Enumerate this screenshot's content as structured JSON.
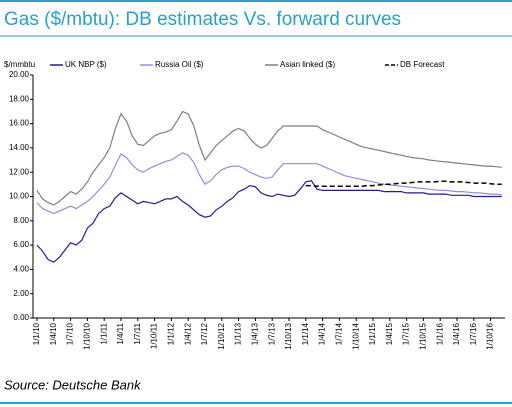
{
  "chart_data": {
    "type": "line",
    "title": "Gas ($/mbtu): DB estimates Vs. forward curves",
    "y_axis_label": "$/mmbtu",
    "source": "Source: Deutsche Bank",
    "categories": [
      "1/1/10",
      null,
      null,
      "1/4/10",
      null,
      null,
      "1/7/10",
      null,
      null,
      "1/10/10",
      null,
      null,
      "1/1/11",
      null,
      null,
      "1/4/11",
      null,
      null,
      "1/7/11",
      null,
      null,
      "1/10/11",
      null,
      null,
      "1/1/12",
      null,
      null,
      "1/4/12",
      null,
      null,
      "1/7/12",
      null,
      null,
      "1/10/12",
      null,
      null,
      "1/1/13",
      null,
      null,
      "1/4/13",
      null,
      null,
      "1/7/13",
      null,
      null,
      "1/10/13",
      null,
      null,
      "1/1/14",
      null,
      null,
      "1/4/14",
      null,
      null,
      "1/7/14",
      null,
      null,
      "1/10/14",
      null,
      null,
      "1/1/15",
      null,
      null,
      "1/4/15",
      null,
      null,
      "1/7/15",
      null,
      null,
      "1/10/15",
      null,
      null,
      "1/1/16",
      null,
      null,
      "1/4/16",
      null,
      null,
      "1/7/16",
      null,
      null,
      "1/10/16",
      null,
      null
    ],
    "series": [
      {
        "name": "UK NBP ($)",
        "color": "#1f1f8f",
        "style": "solid",
        "values": [
          6.0,
          5.5,
          4.8,
          4.6,
          5.0,
          5.6,
          6.2,
          6.0,
          6.4,
          7.4,
          7.8,
          8.6,
          9.0,
          9.2,
          9.9,
          10.3,
          10.0,
          9.7,
          9.4,
          9.6,
          9.5,
          9.4,
          9.6,
          9.8,
          9.8,
          10.0,
          9.6,
          9.3,
          8.9,
          8.5,
          8.3,
          8.4,
          8.9,
          9.2,
          9.6,
          9.9,
          10.4,
          10.6,
          10.9,
          10.8,
          10.3,
          10.1,
          10.0,
          10.2,
          10.1,
          10.0,
          10.1,
          10.6,
          11.2,
          11.3,
          10.6,
          10.5,
          10.5,
          10.5,
          10.5,
          10.5,
          10.5,
          10.5,
          10.5,
          10.5,
          10.5,
          10.5,
          10.4,
          10.4,
          10.4,
          10.4,
          10.3,
          10.3,
          10.3,
          10.3,
          10.2,
          10.2,
          10.2,
          10.2,
          10.1,
          10.1,
          10.1,
          10.1,
          10.0,
          10.0,
          10.0,
          10.0,
          10.0,
          10.0
        ]
      },
      {
        "name": "Russia Oil ($)",
        "color": "#8f8fe0",
        "style": "solid",
        "values": [
          9.5,
          9.0,
          8.8,
          8.6,
          8.8,
          9.0,
          9.2,
          9.0,
          9.3,
          9.6,
          10.0,
          10.5,
          11.0,
          11.6,
          12.6,
          13.5,
          13.2,
          12.6,
          12.2,
          12.0,
          12.3,
          12.5,
          12.7,
          12.9,
          13.0,
          13.3,
          13.6,
          13.4,
          12.8,
          11.8,
          11.0,
          11.3,
          11.8,
          12.2,
          12.4,
          12.5,
          12.5,
          12.3,
          12.0,
          11.8,
          11.6,
          11.5,
          11.6,
          12.2,
          12.7,
          12.7,
          12.7,
          12.7,
          12.7,
          12.7,
          12.7,
          12.5,
          12.3,
          12.1,
          11.9,
          11.7,
          11.6,
          11.5,
          11.4,
          11.3,
          11.2,
          11.1,
          11.0,
          10.95,
          10.9,
          10.85,
          10.8,
          10.75,
          10.7,
          10.65,
          10.6,
          10.55,
          10.5,
          10.5,
          10.45,
          10.4,
          10.4,
          10.35,
          10.3,
          10.3,
          10.25,
          10.2,
          10.2,
          10.15
        ]
      },
      {
        "name": "Asian linked ($)",
        "color": "#7f7f7f",
        "style": "solid",
        "values": [
          10.5,
          9.8,
          9.5,
          9.3,
          9.6,
          10.0,
          10.4,
          10.2,
          10.6,
          11.2,
          12.0,
          12.6,
          13.2,
          14.0,
          15.6,
          16.8,
          16.2,
          15.0,
          14.3,
          14.2,
          14.6,
          15.0,
          15.2,
          15.3,
          15.5,
          16.2,
          17.0,
          16.8,
          15.8,
          14.2,
          13.0,
          13.6,
          14.2,
          14.6,
          15.0,
          15.4,
          15.6,
          15.4,
          14.8,
          14.3,
          14.0,
          14.2,
          14.8,
          15.4,
          15.8,
          15.8,
          15.8,
          15.8,
          15.8,
          15.8,
          15.8,
          15.5,
          15.3,
          15.1,
          14.9,
          14.7,
          14.5,
          14.3,
          14.1,
          14.0,
          13.9,
          13.8,
          13.7,
          13.6,
          13.5,
          13.4,
          13.3,
          13.2,
          13.15,
          13.1,
          13.0,
          12.95,
          12.9,
          12.85,
          12.8,
          12.75,
          12.7,
          12.65,
          12.6,
          12.55,
          12.5,
          12.5,
          12.45,
          12.4
        ]
      },
      {
        "name": "DB Forecast",
        "color": "#000000",
        "style": "dashed",
        "values": [
          null,
          null,
          null,
          null,
          null,
          null,
          null,
          null,
          null,
          null,
          null,
          null,
          null,
          null,
          null,
          null,
          null,
          null,
          null,
          null,
          null,
          null,
          null,
          null,
          null,
          null,
          null,
          null,
          null,
          null,
          null,
          null,
          null,
          null,
          null,
          null,
          null,
          null,
          null,
          null,
          null,
          null,
          null,
          null,
          null,
          null,
          null,
          null,
          10.9,
          10.9,
          10.85,
          10.85,
          10.85,
          10.85,
          10.85,
          10.85,
          10.85,
          10.85,
          10.85,
          10.9,
          10.9,
          10.95,
          11.0,
          11.0,
          11.05,
          11.1,
          11.1,
          11.15,
          11.2,
          11.2,
          11.2,
          11.2,
          11.25,
          11.25,
          11.2,
          11.2,
          11.2,
          11.15,
          11.1,
          11.1,
          11.1,
          11.05,
          11.0,
          11.0
        ]
      }
    ],
    "ylim": [
      0,
      20
    ],
    "yticks": [
      {
        "value": 0,
        "label": "0.00"
      },
      {
        "value": 2,
        "label": "2.00"
      },
      {
        "value": 4,
        "label": "4.00"
      },
      {
        "value": 6,
        "label": "6.00"
      },
      {
        "value": 8,
        "label": "8.00"
      },
      {
        "value": 10,
        "label": "10.00"
      },
      {
        "value": 12,
        "label": "12.00"
      },
      {
        "value": 14,
        "label": "14.00"
      },
      {
        "value": 16,
        "label": "16.00"
      },
      {
        "value": 18,
        "label": "18.00"
      },
      {
        "value": 20,
        "label": "20.00"
      }
    ],
    "grid": false
  }
}
